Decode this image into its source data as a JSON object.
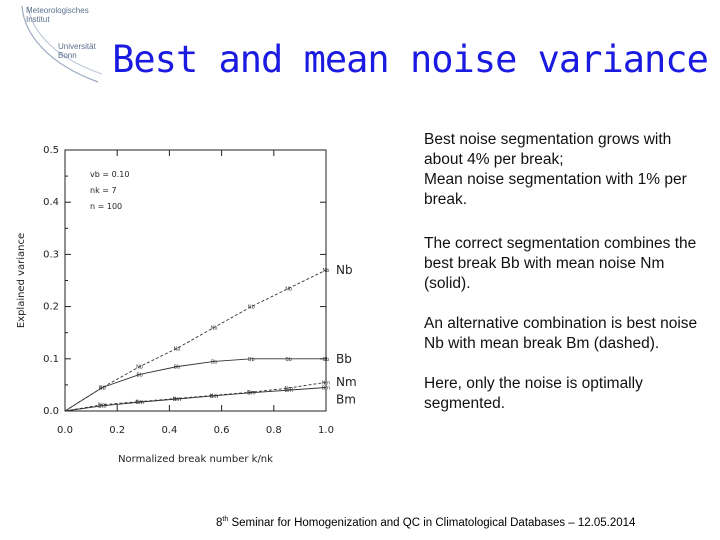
{
  "logo": {
    "line1": "Meteorologisches",
    "line2": "Institut",
    "line3": "Universität",
    "line4": "Bonn"
  },
  "title": "Best and mean noise variance",
  "chart_data": {
    "type": "line",
    "title": "",
    "xlabel": "Normalized break number k/nk",
    "ylabel": "Explained variance",
    "xlim": [
      0.0,
      1.0
    ],
    "ylim": [
      0.0,
      0.5
    ],
    "xticks": [
      0.0,
      0.2,
      0.4,
      0.6,
      0.8,
      1.0
    ],
    "yticks": [
      0.0,
      0.1,
      0.2,
      0.3,
      0.4,
      0.5
    ],
    "xtick_labels": [
      "0.0",
      "0.2",
      "0.4",
      "0.6",
      "0.8",
      "1.0"
    ],
    "ytick_labels": [
      "0.0",
      "0.1",
      "0.2",
      "0.3",
      "0.4",
      "0.5"
    ],
    "params": [
      "vb  =  0.10",
      "nk  =  7",
      "n   =  100"
    ],
    "x": [
      0.0,
      0.143,
      0.286,
      0.429,
      0.571,
      0.714,
      0.857,
      1.0
    ],
    "series": [
      {
        "name": "Nb",
        "style": "dashed",
        "marker": "Nb",
        "values": [
          0.0,
          0.045,
          0.085,
          0.12,
          0.16,
          0.2,
          0.235,
          0.27
        ]
      },
      {
        "name": "Bb",
        "style": "solid",
        "marker": "Bb",
        "values": [
          0.0,
          0.045,
          0.07,
          0.085,
          0.095,
          0.1,
          0.1,
          0.1
        ]
      },
      {
        "name": "Nm",
        "style": "dashed",
        "marker": "Nm",
        "values": [
          0.0,
          0.012,
          0.018,
          0.024,
          0.03,
          0.036,
          0.044,
          0.055
        ]
      },
      {
        "name": "Bm",
        "style": "solid",
        "marker": "Bm",
        "values": [
          0.0,
          0.01,
          0.017,
          0.023,
          0.029,
          0.035,
          0.04,
          0.045
        ]
      }
    ],
    "end_labels": [
      "Nb",
      "Bb",
      "Nm",
      "Bm"
    ]
  },
  "text": {
    "p1": "Best noise segmentation grows with about 4% per break;",
    "p1b": "Mean noise segmentation with 1% per break.",
    "p2": "The correct segmentation combines the best break Bb with mean noise Nm (solid).",
    "p3": "An alternative combination is best noise Nb with mean break Bm (dashed).",
    "p4": "Here, only the noise is optimally segmented."
  },
  "footer": {
    "num": "8",
    "sup": "th",
    "rest": " Seminar for Homogenization and QC in Climatological Databases – 12.05.2014"
  }
}
